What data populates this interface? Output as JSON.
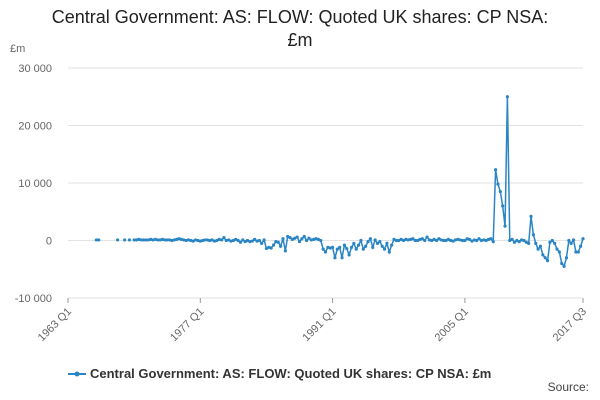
{
  "chart_data": {
    "type": "line",
    "title": "Central Government: AS: FLOW: Quoted UK shares: CP NSA: £m",
    "y_label": "£m",
    "source": "Source:",
    "categories": [
      "1963 Q1",
      null,
      null,
      null,
      null,
      null,
      null,
      null,
      null,
      null,
      null,
      null,
      null,
      null,
      null,
      null,
      null,
      null,
      null,
      null,
      null,
      null,
      null,
      null,
      null,
      null,
      null,
      null,
      null,
      null,
      null,
      null,
      null,
      null,
      null,
      null,
      null,
      null,
      null,
      null,
      null,
      null,
      null,
      null,
      null,
      null,
      null,
      null,
      null,
      null,
      null,
      null,
      null,
      null,
      null,
      null,
      "1977 Q1",
      null,
      null,
      null,
      null,
      null,
      null,
      null,
      null,
      null,
      null,
      null,
      null,
      null,
      null,
      null,
      null,
      null,
      null,
      null,
      null,
      null,
      null,
      null,
      null,
      null,
      null,
      null,
      null,
      null,
      null,
      null,
      null,
      null,
      null,
      null,
      null,
      null,
      null,
      null,
      null,
      null,
      null,
      null,
      null,
      null,
      null,
      null,
      null,
      null,
      null,
      null,
      null,
      null,
      null,
      null,
      "1991 Q1",
      null,
      null,
      null,
      null,
      null,
      null,
      null,
      null,
      null,
      null,
      null,
      null,
      null,
      null,
      null,
      null,
      null,
      null,
      null,
      null,
      null,
      null,
      null,
      null,
      null,
      null,
      null,
      null,
      null,
      null,
      null,
      null,
      null,
      null,
      null,
      null,
      null,
      null,
      null,
      null,
      null,
      null,
      null,
      null,
      null,
      null,
      null,
      null,
      null,
      null,
      null,
      null,
      null,
      null,
      null,
      "2005 Q1",
      null,
      null,
      null,
      null,
      null,
      null,
      null,
      null,
      null,
      null,
      null,
      null,
      null,
      null,
      null,
      null,
      null,
      null,
      null,
      null,
      null,
      null,
      null,
      null,
      null,
      null,
      null,
      null,
      null,
      null,
      null,
      null,
      null,
      null,
      null,
      null,
      null,
      null,
      null,
      null,
      null,
      null,
      null,
      null,
      null,
      null,
      null,
      null,
      null,
      "2017 Q3"
    ],
    "series": [
      {
        "name": "Central Government: AS: FLOW: Quoted UK shares: CP NSA: £m",
        "color": "#2a85c4",
        "values": [
          null,
          null,
          null,
          null,
          null,
          null,
          null,
          null,
          null,
          null,
          null,
          null,
          100,
          100,
          null,
          null,
          null,
          null,
          null,
          null,
          null,
          100,
          null,
          null,
          100,
          null,
          100,
          null,
          100,
          100,
          200,
          100,
          100,
          100,
          100,
          200,
          100,
          200,
          100,
          100,
          200,
          100,
          100,
          100,
          0,
          100,
          200,
          300,
          200,
          100,
          0,
          100,
          0,
          -100,
          100,
          0,
          -100,
          0,
          100,
          100,
          0,
          100,
          -100,
          0,
          200,
          100,
          500,
          0,
          100,
          -100,
          0,
          200,
          0,
          -300,
          100,
          -200,
          0,
          -200,
          -100,
          200,
          -100,
          0,
          -500,
          100,
          -1400,
          -1200,
          -1300,
          -800,
          -200,
          -300,
          -1000,
          300,
          -1800,
          700,
          500,
          200,
          400,
          600,
          -200,
          300,
          700,
          0,
          400,
          100,
          200,
          300,
          200,
          0,
          -1500,
          -2000,
          -1200,
          -1300,
          -1200,
          -3000,
          -1500,
          -1200,
          -3000,
          -800,
          -1400,
          -2500,
          -1200,
          -500,
          -1500,
          -800,
          0,
          -1500,
          -1000,
          -200,
          300,
          -1200,
          100,
          -500,
          -200,
          -1000,
          -1500,
          -500,
          -2000,
          -800,
          200,
          0,
          0,
          200,
          0,
          200,
          100,
          200,
          300,
          0,
          0,
          200,
          300,
          0,
          600,
          100,
          0,
          200,
          0,
          300,
          100,
          0,
          0,
          200,
          0,
          -100,
          100,
          200,
          100,
          0,
          0,
          300,
          200,
          -100,
          100,
          0,
          300,
          0,
          100,
          0,
          200,
          300,
          -200,
          12300,
          9800,
          8500,
          6000,
          2500,
          25000,
          0,
          200,
          -300,
          0,
          -200,
          100,
          0,
          -300,
          -500,
          4200,
          1000,
          -500,
          -1500,
          -1000,
          -2500,
          -3000,
          -3500,
          -300,
          0,
          -500,
          -1500,
          -2000,
          -4000,
          -4500,
          -3000,
          0,
          -500,
          100,
          -2000,
          -2000,
          -1000,
          300
        ]
      }
    ],
    "ylim": [
      -10000,
      30000
    ],
    "yticks": [
      {
        "value": -10000,
        "label": "-10 000"
      },
      0,
      {
        "value": 10000,
        "label": "10 000"
      },
      {
        "value": 20000,
        "label": "20 000"
      },
      {
        "value": 30000,
        "label": "30 000"
      }
    ],
    "grid": true
  }
}
